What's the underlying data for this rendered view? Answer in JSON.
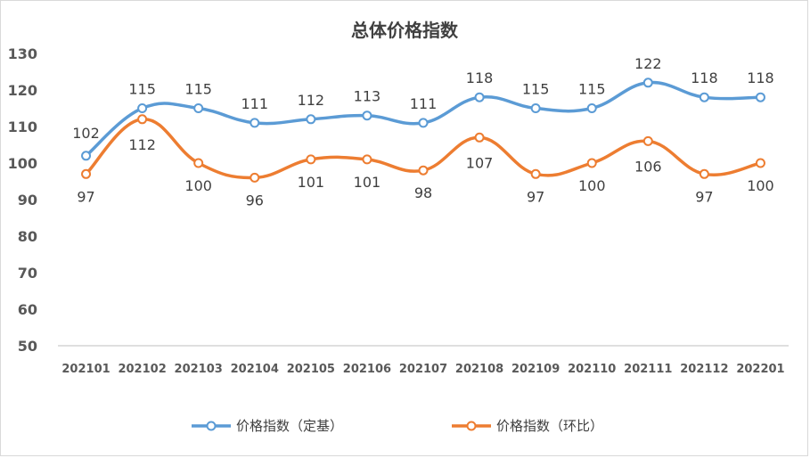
{
  "chart_data": {
    "type": "line",
    "title": "总体价格指数",
    "categories": [
      "202101",
      "202102",
      "202103",
      "202104",
      "202105",
      "202106",
      "202107",
      "202108",
      "202109",
      "202110",
      "202111",
      "202112",
      "202201"
    ],
    "series": [
      {
        "name": "价格指数（定基）",
        "color": "#5b9bd5",
        "values": [
          102,
          115,
          115,
          111,
          112,
          113,
          111,
          118,
          115,
          115,
          122,
          118,
          118
        ]
      },
      {
        "name": "价格指数（环比）",
        "color": "#ed7d31",
        "values": [
          97,
          112,
          100,
          96,
          101,
          101,
          98,
          107,
          97,
          100,
          106,
          97,
          100
        ]
      }
    ],
    "ylim": [
      50,
      130
    ],
    "yticks": [
      50,
      60,
      70,
      80,
      90,
      100,
      110,
      120,
      130
    ],
    "smooth": true,
    "grid": false,
    "legend_position": "bottom",
    "data_labels": true
  }
}
